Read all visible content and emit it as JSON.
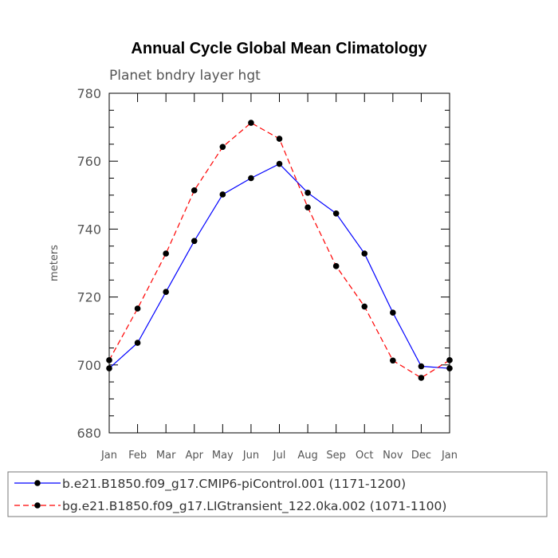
{
  "chart_data": {
    "type": "line",
    "title": "Annual Cycle Global Mean Climatology",
    "subtitle": "Planet bndry layer hgt",
    "ylabel": "meters",
    "xlabel": "",
    "categories": [
      "Jan",
      "Feb",
      "Mar",
      "Apr",
      "May",
      "Jun",
      "Jul",
      "Aug",
      "Sep",
      "Oct",
      "Nov",
      "Dec",
      "Jan"
    ],
    "ylim": [
      680,
      780
    ],
    "yticks": [
      680,
      700,
      720,
      740,
      760,
      780
    ],
    "yticks_minor_step": 5,
    "grid": false,
    "legend_position": "bottom",
    "series": [
      {
        "name": "b.e21.B1850.f09_g17.CMIP6-piControl.001 (1171-1200)",
        "color": "#0000ff",
        "dash": "solid",
        "marker": "filled-circle",
        "values": [
          699.0,
          706.5,
          721.5,
          736.5,
          750.2,
          755.0,
          759.2,
          750.7,
          744.6,
          732.8,
          715.4,
          699.6,
          699.0
        ]
      },
      {
        "name": "bg.e21.B1850.f09_g17.LIGtransient_122.0ka.002 (1071-1100)",
        "color": "#ff0000",
        "dash": "dashed",
        "marker": "filled-circle",
        "values": [
          701.4,
          716.6,
          732.8,
          751.4,
          764.2,
          771.3,
          766.6,
          746.4,
          729.1,
          717.2,
          701.3,
          696.2,
          701.4
        ]
      }
    ]
  }
}
